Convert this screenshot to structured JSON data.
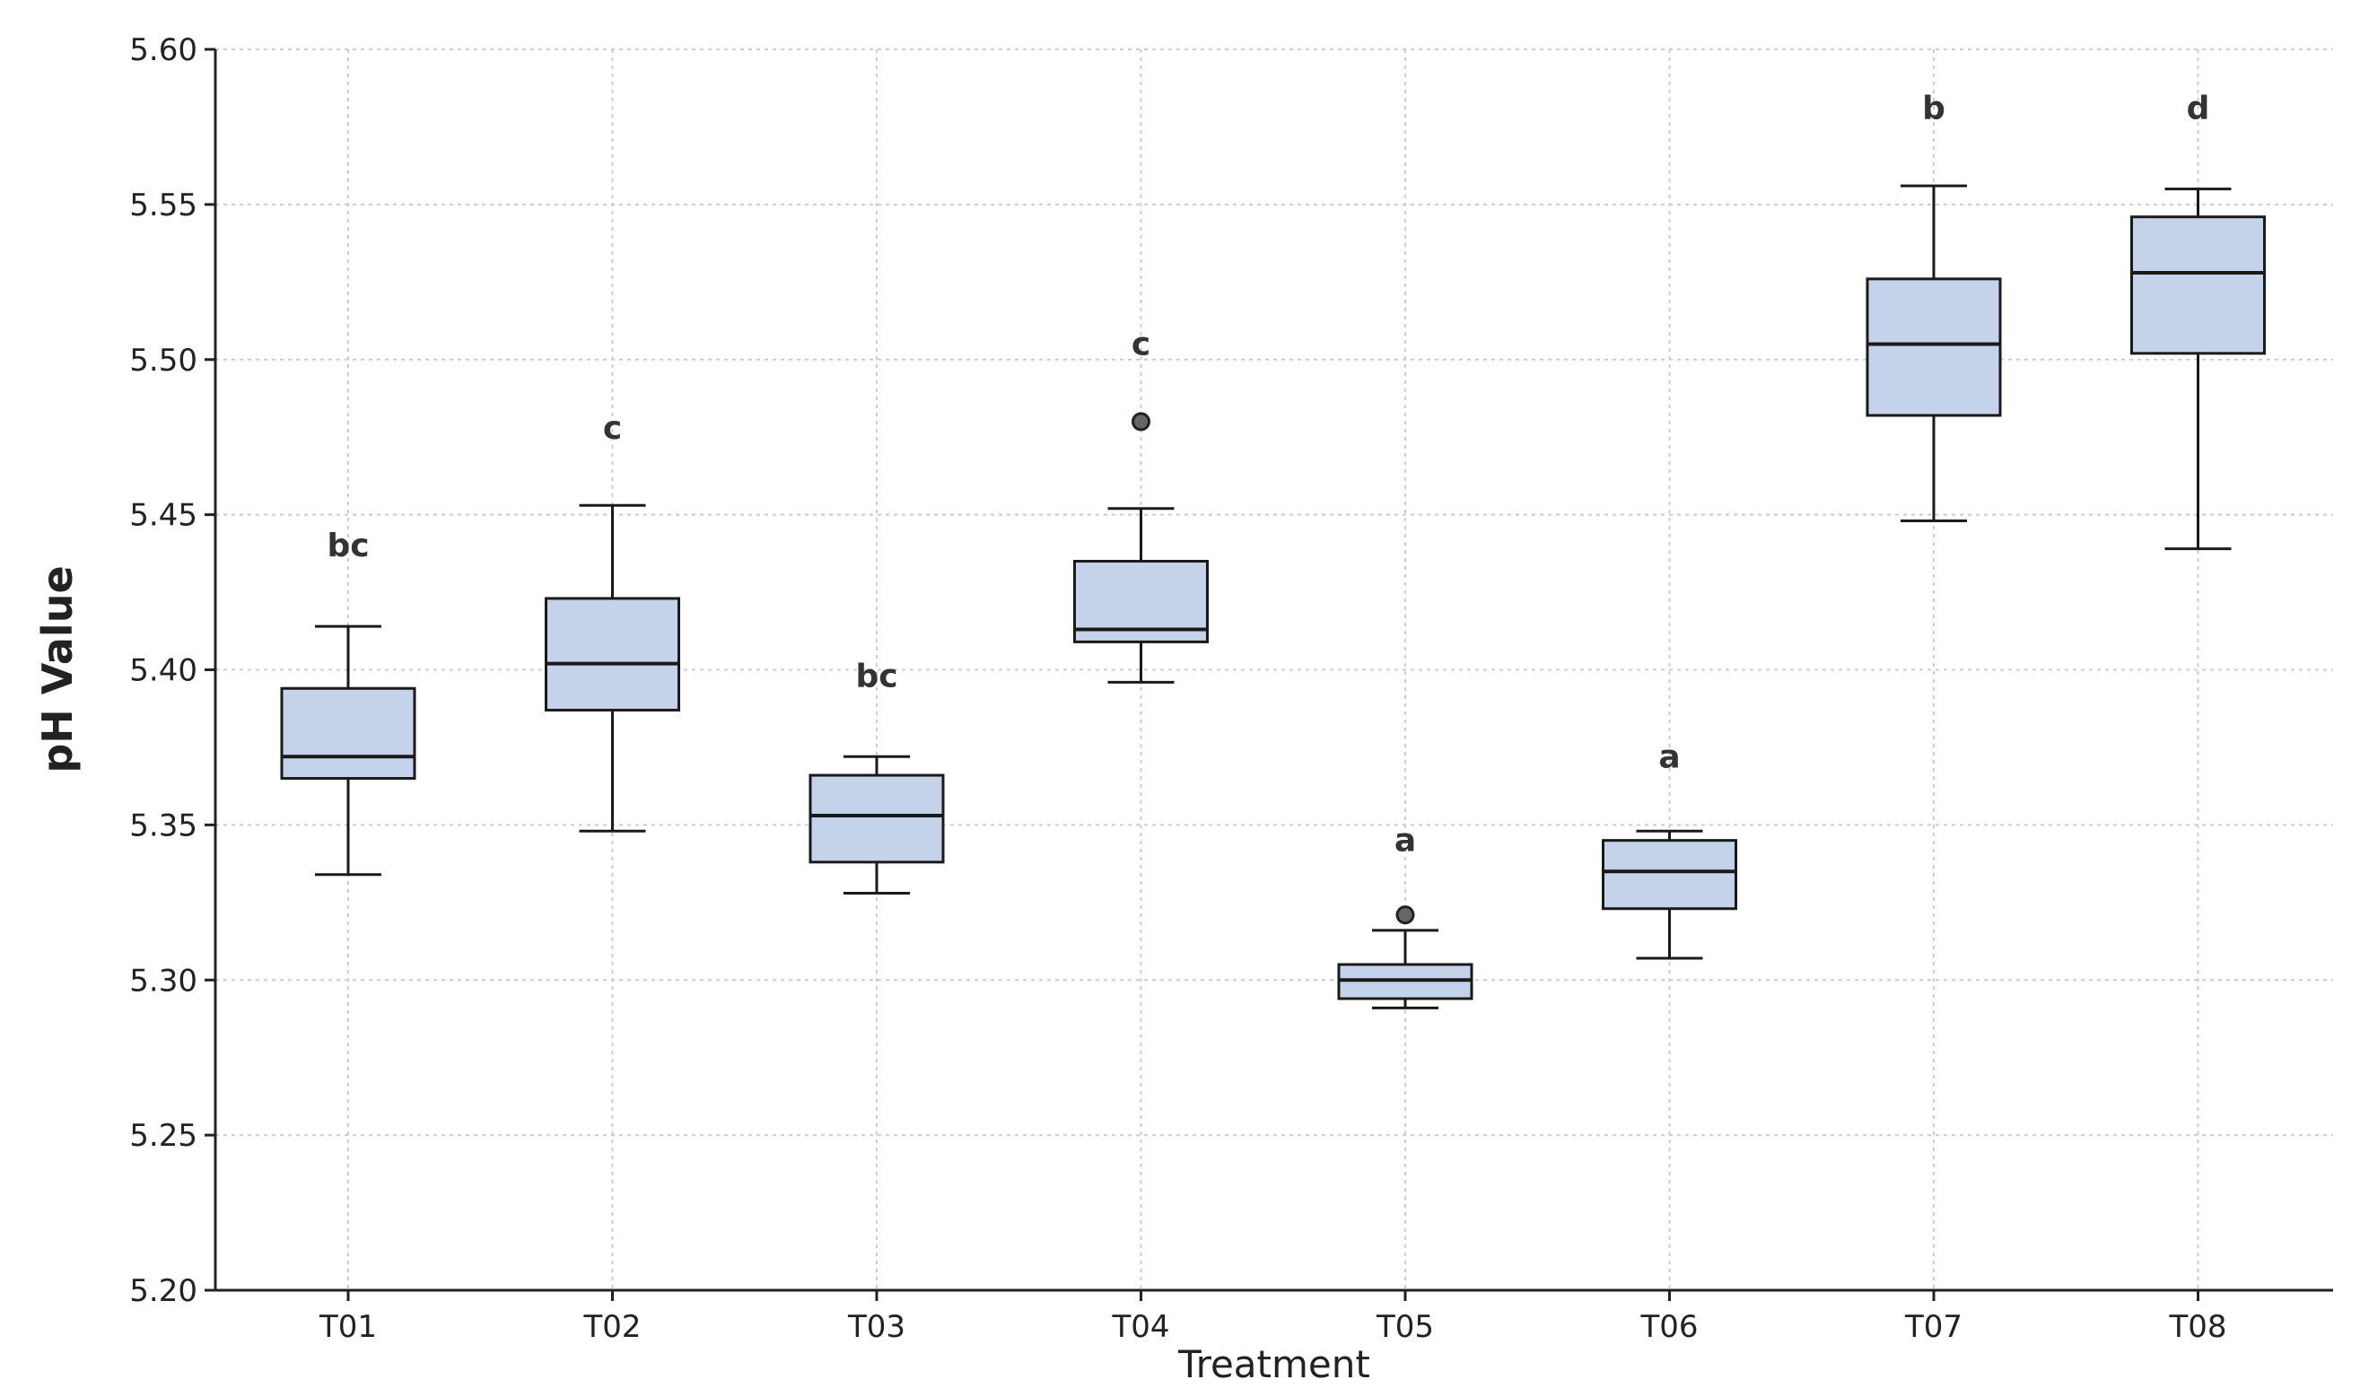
{
  "chart_data": {
    "type": "boxplot",
    "title": "",
    "xlabel": "Treatment",
    "ylabel": "pH Value",
    "ylim": [
      5.2,
      5.6
    ],
    "yticks": [
      "5.20",
      "5.25",
      "5.30",
      "5.35",
      "5.40",
      "5.45",
      "5.50",
      "5.55",
      "5.60"
    ],
    "grid": true,
    "box_color": "#c5d3ea",
    "edge_color": "#1a1a1a",
    "outlier_color": "#666666",
    "categories": [
      "T01",
      "T02",
      "T03",
      "T04",
      "T05",
      "T06",
      "T07",
      "T08"
    ],
    "boxes": [
      {
        "label": "T01",
        "whisker_low": 5.334,
        "q1": 5.365,
        "median": 5.372,
        "q3": 5.394,
        "whisker_high": 5.414,
        "outliers": [],
        "letter": "bc"
      },
      {
        "label": "T02",
        "whisker_low": 5.348,
        "q1": 5.387,
        "median": 5.402,
        "q3": 5.423,
        "whisker_high": 5.453,
        "outliers": [],
        "letter": "c"
      },
      {
        "label": "T03",
        "whisker_low": 5.328,
        "q1": 5.338,
        "median": 5.353,
        "q3": 5.366,
        "whisker_high": 5.372,
        "outliers": [],
        "letter": "bc"
      },
      {
        "label": "T04",
        "whisker_low": 5.396,
        "q1": 5.409,
        "median": 5.413,
        "q3": 5.435,
        "whisker_high": 5.452,
        "outliers": [
          5.48
        ],
        "letter": "c"
      },
      {
        "label": "T05",
        "whisker_low": 5.291,
        "q1": 5.294,
        "median": 5.3,
        "q3": 5.305,
        "whisker_high": 5.316,
        "outliers": [
          5.321
        ],
        "letter": "a"
      },
      {
        "label": "T06",
        "whisker_low": 5.307,
        "q1": 5.323,
        "median": 5.335,
        "q3": 5.345,
        "whisker_high": 5.348,
        "outliers": [],
        "letter": "a"
      },
      {
        "label": "T07",
        "whisker_low": 5.448,
        "q1": 5.482,
        "median": 5.505,
        "q3": 5.526,
        "whisker_high": 5.556,
        "outliers": [],
        "letter": "b"
      },
      {
        "label": "T08",
        "whisker_low": 5.439,
        "q1": 5.502,
        "median": 5.528,
        "q3": 5.546,
        "whisker_high": 5.555,
        "outliers": [],
        "letter": "d"
      }
    ],
    "letter_values": [
      5.44,
      5.478,
      5.398,
      5.505,
      5.345,
      5.372,
      5.581,
      5.581
    ]
  }
}
